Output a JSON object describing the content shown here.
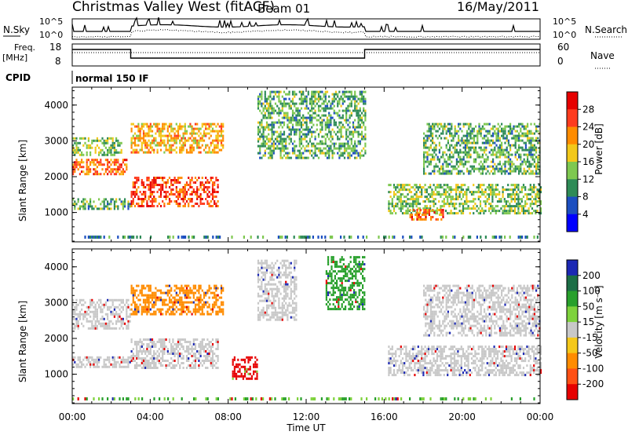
{
  "header": {
    "station": "Christmas Valley West (fitACF)",
    "beam": "Beam 01",
    "date": "16/May/2011"
  },
  "top_panel": {
    "left_label": "N.Sky",
    "right_label": "N.Search",
    "left_ticks": [
      "10^5",
      "10^0"
    ],
    "right_ticks": [
      "10^5",
      "10^0"
    ]
  },
  "freq_panel": {
    "left_label_1": "Freq.",
    "left_label_2": "[MHz]",
    "right_label": "Nave",
    "left_ticks": [
      "18",
      "8"
    ],
    "right_ticks": [
      "60",
      "0"
    ]
  },
  "cpid": {
    "label": "CPID",
    "text": "normal 150 IF"
  },
  "chart_data": [
    {
      "type": "heatmap",
      "name": "power",
      "ylabel": "Slant Range [km]",
      "xlabel": "Time UT",
      "x_ticks": [
        "00:00",
        "04:00",
        "08:00",
        "12:00",
        "16:00",
        "20:00",
        "00:00"
      ],
      "x_range_hours": [
        0,
        24
      ],
      "y_ticks": [
        1000,
        2000,
        3000,
        4000
      ],
      "ylim": [
        180,
        4500
      ],
      "colorbar": {
        "label": "Power [dB]",
        "ticks": [
          4,
          8,
          12,
          16,
          20,
          24,
          28
        ],
        "colors": [
          "#0000ff",
          "#1c4fc0",
          "#2e8b57",
          "#7ec850",
          "#f2c81a",
          "#ff8c00",
          "#ff3c1e",
          "#e60000"
        ]
      },
      "features": [
        {
          "band": "lower",
          "t": [
            0.0,
            3.0
          ],
          "range": [
            1100,
            1400
          ],
          "level": 12
        },
        {
          "band": "lower",
          "t": [
            3.0,
            7.5
          ],
          "range": [
            1150,
            2000
          ],
          "level": 26
        },
        {
          "band": "lower",
          "t": [
            0.0,
            2.8
          ],
          "range": [
            2100,
            2500
          ],
          "level": 24
        },
        {
          "band": "lower",
          "t": [
            0.0,
            2.5
          ],
          "range": [
            2600,
            3100
          ],
          "level": 14
        },
        {
          "band": "upper",
          "t": [
            3.0,
            7.7
          ],
          "range": [
            2700,
            3500
          ],
          "level": 20
        },
        {
          "band": "upper",
          "t": [
            9.5,
            15.0
          ],
          "range": [
            2500,
            4400
          ],
          "level": 12
        },
        {
          "band": "lower",
          "t": [
            16.2,
            24.0
          ],
          "range": [
            1000,
            1800
          ],
          "level": 14
        },
        {
          "band": "lower",
          "t": [
            17.3,
            19.0
          ],
          "range": [
            800,
            1100
          ],
          "level": 24
        },
        {
          "band": "upper",
          "t": [
            18.0,
            24.0
          ],
          "range": [
            2100,
            3500
          ],
          "level": 12
        }
      ]
    },
    {
      "type": "heatmap",
      "name": "velocity",
      "ylabel": "Slant Range [km]",
      "xlabel": "Time UT",
      "x_ticks": [
        "00:00",
        "04:00",
        "08:00",
        "12:00",
        "16:00",
        "20:00",
        "00:00"
      ],
      "x_range_hours": [
        0,
        24
      ],
      "y_ticks": [
        1000,
        2000,
        3000,
        4000
      ],
      "ylim": [
        180,
        4500
      ],
      "colorbar": {
        "label": "Velocity [m s⁻¹]",
        "ticks": [
          200,
          100,
          50,
          15,
          -15,
          -50,
          -100,
          -200
        ],
        "colors": [
          "#1c28b4",
          "#1c6e46",
          "#28a02c",
          "#7ed23c",
          "#c8c8c8",
          "#f5c81a",
          "#ff8c00",
          "#ff5014",
          "#e60000"
        ]
      },
      "features": [
        {
          "t": [
            0.0,
            3.0
          ],
          "range": [
            1200,
            1500
          ],
          "velocity": 0
        },
        {
          "t": [
            0.0,
            3.0
          ],
          "range": [
            2300,
            3100
          ],
          "velocity": 0
        },
        {
          "t": [
            3.0,
            7.5
          ],
          "range": [
            1200,
            2000
          ],
          "velocity": 0
        },
        {
          "t": [
            3.0,
            7.7
          ],
          "range": [
            2700,
            3500
          ],
          "velocity": -60
        },
        {
          "t": [
            9.5,
            11.5
          ],
          "range": [
            2500,
            4200
          ],
          "velocity": 0
        },
        {
          "t": [
            8.2,
            9.5
          ],
          "range": [
            900,
            1500
          ],
          "velocity": -200
        },
        {
          "t": [
            13.0,
            15.0
          ],
          "range": [
            2800,
            4300
          ],
          "velocity": 50
        },
        {
          "t": [
            16.2,
            24.0
          ],
          "range": [
            1000,
            1800
          ],
          "velocity": 0
        },
        {
          "t": [
            18.0,
            24.0
          ],
          "range": [
            2100,
            3500
          ],
          "velocity": 0
        }
      ]
    }
  ]
}
